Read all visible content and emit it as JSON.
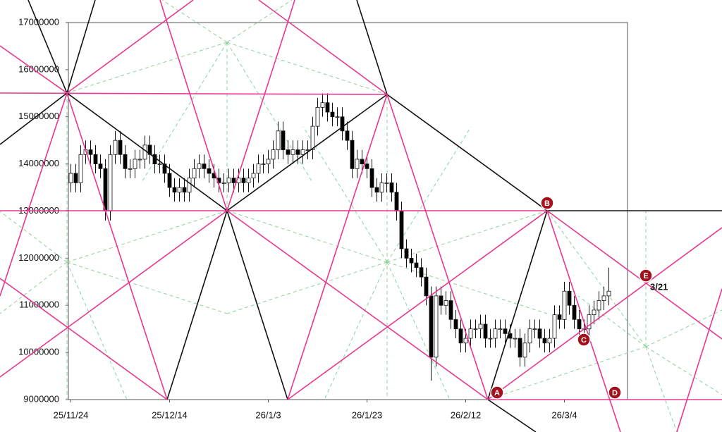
{
  "chart_data": {
    "type": "candlestick",
    "categories": [
      "25/11/24",
      null,
      null,
      null,
      null,
      null,
      null,
      null,
      null,
      null,
      null,
      null,
      null,
      null,
      null,
      null,
      null,
      null,
      null,
      null,
      "25/12/14",
      null,
      null,
      null,
      null,
      null,
      null,
      null,
      null,
      null,
      null,
      null,
      null,
      null,
      null,
      null,
      null,
      null,
      null,
      null,
      "26/1/3",
      null,
      null,
      null,
      null,
      null,
      null,
      null,
      null,
      null,
      null,
      null,
      null,
      null,
      null,
      null,
      null,
      null,
      null,
      null,
      "26/1/23",
      null,
      null,
      null,
      null,
      null,
      null,
      null,
      null,
      null,
      null,
      null,
      null,
      null,
      null,
      null,
      null,
      null,
      null,
      null,
      "26/2/12",
      null,
      null,
      null,
      null,
      null,
      null,
      null,
      null,
      null,
      null,
      null,
      null,
      null,
      null,
      null,
      null,
      null,
      null,
      null,
      "26/3/4",
      null,
      null,
      null,
      null,
      null,
      null,
      null,
      null,
      null
    ],
    "open": [
      13600000,
      13800000,
      13600000,
      14200000,
      14300000,
      14200000,
      14000000,
      13900000,
      13000000,
      14200000,
      14500000,
      14200000,
      13900000,
      13900000,
      14100000,
      14100000,
      14400000,
      14200000,
      14000000,
      14000000,
      13800000,
      13500000,
      13400000,
      13500000,
      13400000,
      13700000,
      13900000,
      14000000,
      13900000,
      13800000,
      13700000,
      13600000,
      13600000,
      13700000,
      13600000,
      13700000,
      13600000,
      13700000,
      13800000,
      14000000,
      14000000,
      14100000,
      14300000,
      14700000,
      14300000,
      14200000,
      14300000,
      14200000,
      14300000,
      14300000,
      14800000,
      15200000,
      15300000,
      15100000,
      15000000,
      15000000,
      14700000,
      14500000,
      13900000,
      14100000,
      14000000,
      13900000,
      13500000,
      13400000,
      13600000,
      13600000,
      13400000,
      13000000,
      12200000,
      12000000,
      11900000,
      11800000,
      11600000,
      11200000,
      9900000,
      11200000,
      11000000,
      11100000,
      10700000,
      10500000,
      10200000,
      10300000,
      10500000,
      10500000,
      10600000,
      10300000,
      10300000,
      10500000,
      10500000,
      10400000,
      10300000,
      10300000,
      9900000,
      10200000,
      10500000,
      10500000,
      10300000,
      10200000,
      10300000,
      10800000,
      10700000,
      11300000,
      11000000,
      10700000,
      10500000,
      10500000,
      10800000,
      10900000,
      11100000,
      11200000
    ],
    "high": [
      14000000,
      14000000,
      14400000,
      14500000,
      14500000,
      14400000,
      14200000,
      14100000,
      14400000,
      14700000,
      14700000,
      14400000,
      14100000,
      14300000,
      14300000,
      14600000,
      14600000,
      14400000,
      14200000,
      14200000,
      14000000,
      13700000,
      13700000,
      13700000,
      13900000,
      14100000,
      14200000,
      14200000,
      14100000,
      14000000,
      13900000,
      13800000,
      13900000,
      13900000,
      13900000,
      13900000,
      13900000,
      14000000,
      14200000,
      14200000,
      14300000,
      14500000,
      14900000,
      14900000,
      14500000,
      14500000,
      14500000,
      14500000,
      14500000,
      15000000,
      15400000,
      15500000,
      15500000,
      15300000,
      15200000,
      15200000,
      14900000,
      14700000,
      14300000,
      14300000,
      14200000,
      14100000,
      13700000,
      13800000,
      13800000,
      13800000,
      13600000,
      13200000,
      12400000,
      12200000,
      12100000,
      12000000,
      11800000,
      11400000,
      11400000,
      11400000,
      11300000,
      11300000,
      10900000,
      10700000,
      10500000,
      10700000,
      10700000,
      10800000,
      10800000,
      10500000,
      10700000,
      10700000,
      10700000,
      10600000,
      10500000,
      10500000,
      10400000,
      10700000,
      10700000,
      10700000,
      10500000,
      10500000,
      11000000,
      11000000,
      11500000,
      11500000,
      11200000,
      10900000,
      10700000,
      11000000,
      11100000,
      11300000,
      11400000,
      11800000
    ],
    "low": [
      13400000,
      13400000,
      13400000,
      14000000,
      14000000,
      13800000,
      13700000,
      12800000,
      12800000,
      14000000,
      14000000,
      13700000,
      13700000,
      13700000,
      13900000,
      13900000,
      14000000,
      13800000,
      13800000,
      13600000,
      13300000,
      13200000,
      13200000,
      13200000,
      13200000,
      13500000,
      13700000,
      13700000,
      13600000,
      13500000,
      13400000,
      13400000,
      13400000,
      13400000,
      13400000,
      13400000,
      13400000,
      13500000,
      13600000,
      13800000,
      13800000,
      13900000,
      14100000,
      14100000,
      14000000,
      14000000,
      14000000,
      14000000,
      14100000,
      14100000,
      14600000,
      15000000,
      14900000,
      14800000,
      14800000,
      14500000,
      14300000,
      13700000,
      13700000,
      13800000,
      13700000,
      13300000,
      13200000,
      13200000,
      13400000,
      13200000,
      12800000,
      12000000,
      11800000,
      11700000,
      11600000,
      11400000,
      11000000,
      9400000,
      9700000,
      10800000,
      10800000,
      10500000,
      10300000,
      10000000,
      10000000,
      10100000,
      10300000,
      10300000,
      10100000,
      10100000,
      10100000,
      10300000,
      10200000,
      10100000,
      10100000,
      9700000,
      9700000,
      10000000,
      10300000,
      10100000,
      10000000,
      10000000,
      10100000,
      10500000,
      10500000,
      10800000,
      10500000,
      10300000,
      10300000,
      10300000,
      10600000,
      10700000,
      10900000,
      11000000
    ],
    "close": [
      13800000,
      13600000,
      14200000,
      14300000,
      14200000,
      14000000,
      13900000,
      13000000,
      14200000,
      14500000,
      14200000,
      13900000,
      13900000,
      14100000,
      14100000,
      14400000,
      14200000,
      14000000,
      14000000,
      13800000,
      13500000,
      13400000,
      13500000,
      13400000,
      13700000,
      13900000,
      14000000,
      13900000,
      13800000,
      13700000,
      13600000,
      13600000,
      13700000,
      13600000,
      13700000,
      13600000,
      13700000,
      13800000,
      14000000,
      14000000,
      14100000,
      14300000,
      14700000,
      14300000,
      14200000,
      14300000,
      14200000,
      14300000,
      14300000,
      14800000,
      15200000,
      15300000,
      15100000,
      15000000,
      15000000,
      14700000,
      14500000,
      13900000,
      14100000,
      14000000,
      13900000,
      13500000,
      13400000,
      13600000,
      13600000,
      13400000,
      13000000,
      12200000,
      12000000,
      11900000,
      11800000,
      11600000,
      11200000,
      9900000,
      11200000,
      11000000,
      11100000,
      10700000,
      10500000,
      10200000,
      10300000,
      10500000,
      10500000,
      10600000,
      10300000,
      10300000,
      10500000,
      10500000,
      10400000,
      10300000,
      10300000,
      9900000,
      10200000,
      10500000,
      10500000,
      10300000,
      10200000,
      10300000,
      10800000,
      10700000,
      11300000,
      11000000,
      10700000,
      10500000,
      10500000,
      10800000,
      10900000,
      11100000,
      11200000,
      11300000
    ],
    "up_color": "#ffffff",
    "down_color": "#000000",
    "ylim": [
      9000000,
      17000000
    ],
    "yticks": [
      9000000,
      10000000,
      11000000,
      12000000,
      13000000,
      14000000,
      15000000,
      16000000,
      17000000
    ],
    "annotations": [
      "A",
      "B",
      "C",
      "D",
      "E",
      "3/21"
    ]
  }
}
